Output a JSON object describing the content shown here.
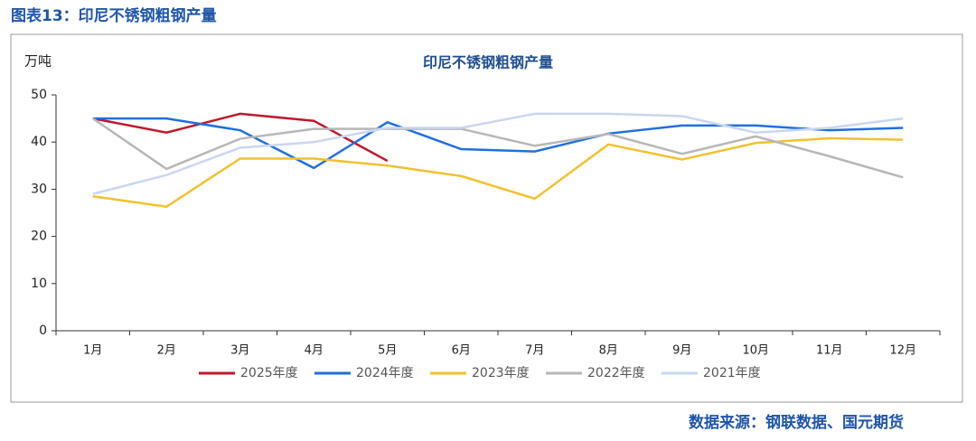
{
  "figure_title": "图表13：印尼不锈钢粗钢产量",
  "source": "数据来源：钢联数据、国元期货",
  "chart_data": {
    "type": "line",
    "title": "印尼不锈钢粗钢产量",
    "y_label": "万吨",
    "categories": [
      "1月",
      "2月",
      "3月",
      "4月",
      "5月",
      "6月",
      "7月",
      "8月",
      "9月",
      "10月",
      "11月",
      "12月"
    ],
    "series": [
      {
        "name": "2025年度",
        "color": "#c0172c",
        "values": [
          45,
          42,
          46,
          44.5,
          36,
          null,
          null,
          null,
          null,
          null,
          null,
          null
        ]
      },
      {
        "name": "2024年度",
        "color": "#1f6fe0",
        "values": [
          45,
          45,
          42.5,
          34.5,
          44.2,
          38.5,
          38,
          41.8,
          43.5,
          43.5,
          42.5,
          43
        ]
      },
      {
        "name": "2023年度",
        "color": "#f2c12e",
        "values": [
          28.5,
          26.3,
          36.5,
          36.5,
          35,
          32.8,
          28,
          39.5,
          36.3,
          39.8,
          40.8,
          40.5
        ]
      },
      {
        "name": "2022年度",
        "color": "#b7b7b7",
        "values": [
          45,
          34.3,
          40.7,
          42.8,
          42.8,
          42.8,
          39.2,
          41.7,
          37.5,
          41.2,
          37,
          32.5
        ]
      },
      {
        "name": "2021年度",
        "color": "#c9d6f2",
        "values": [
          29,
          33,
          38.8,
          40,
          43,
          43,
          46,
          46,
          45.5,
          42,
          43,
          45
        ]
      }
    ],
    "ylim": [
      0,
      50
    ],
    "yticks": [
      0,
      10,
      20,
      30,
      40,
      50
    ],
    "grid": false,
    "legend": "bottom"
  }
}
